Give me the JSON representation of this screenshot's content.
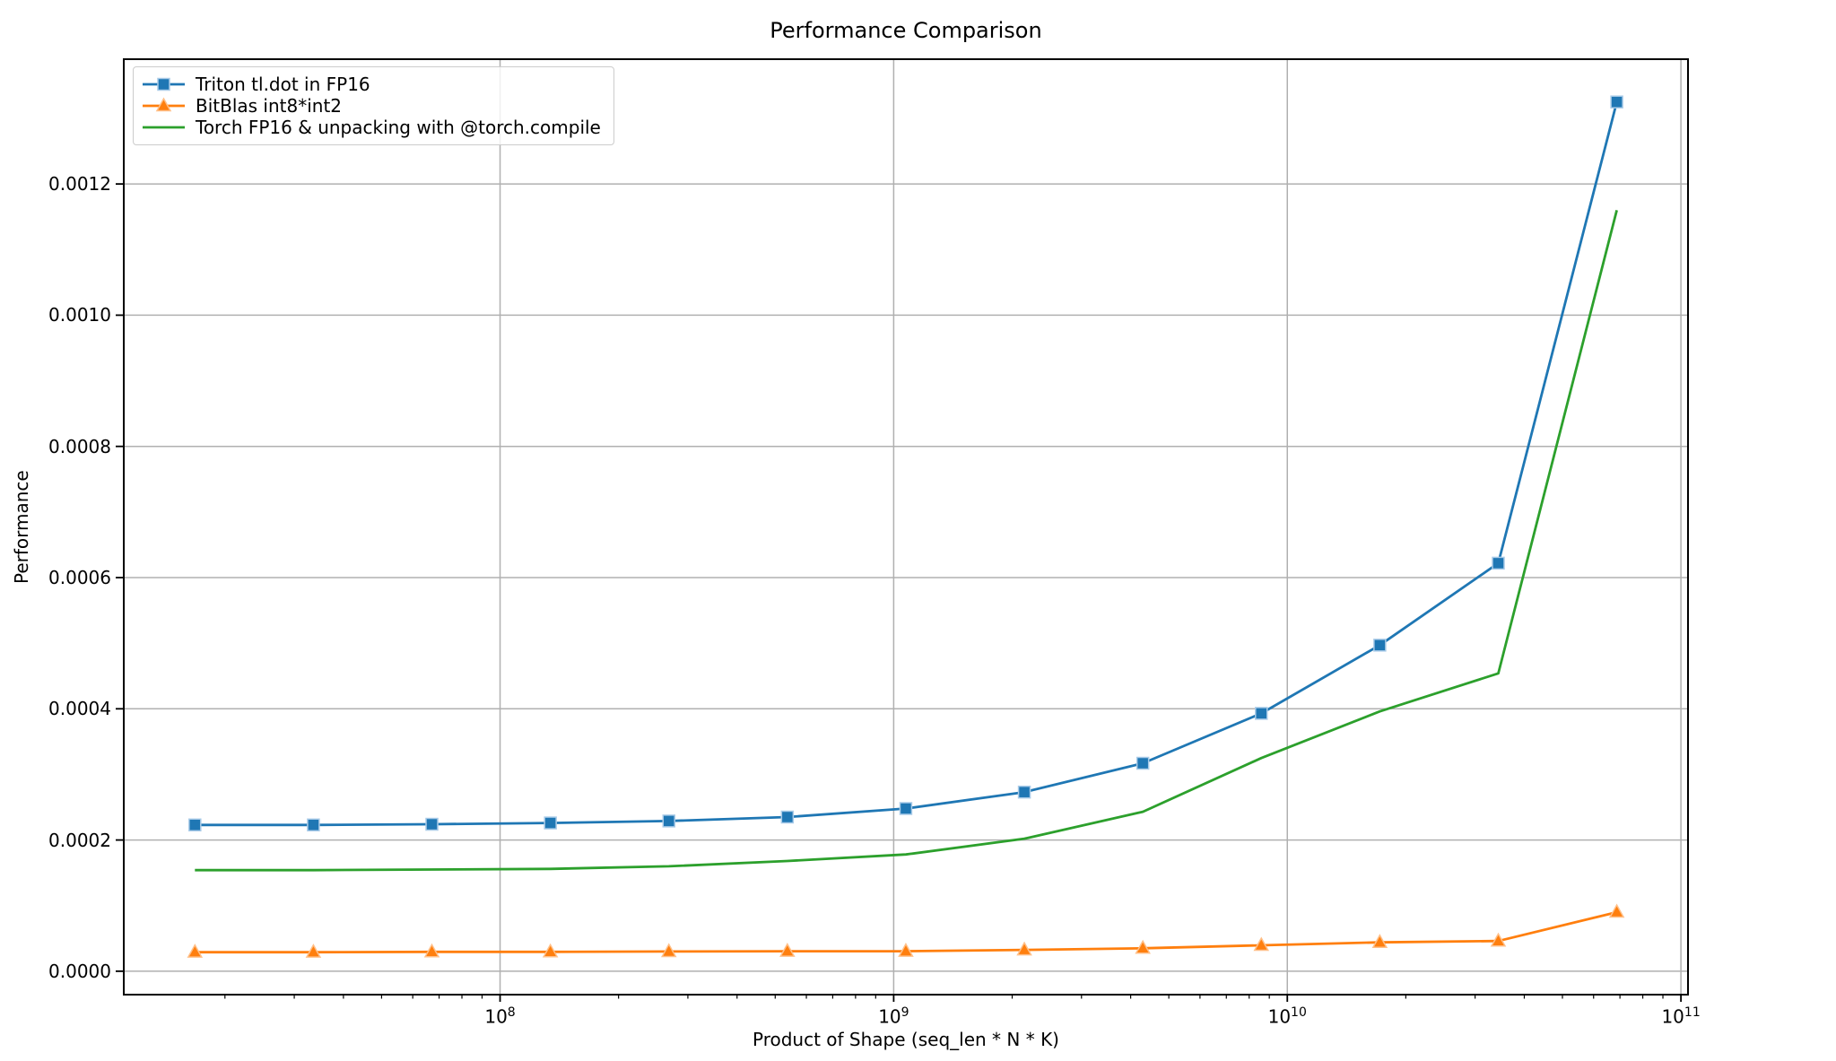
{
  "figure": {
    "background": "#ffffff"
  },
  "chart_data": {
    "type": "line",
    "title": "Performance Comparison",
    "xlabel": "Product of Shape (seq_len * N * K)",
    "ylabel": "Performance",
    "x_scale": "log",
    "grid": true,
    "grid_color": "#b0b0b0",
    "spine_color": "#000000",
    "legend_position": "upper left",
    "x_range_log10": [
      7.044,
      11.018
    ],
    "y_range": [
      -3.57e-05,
      0.0013902
    ],
    "x": [
      16777216,
      33554432,
      67108864,
      134217728,
      268435456,
      536870912,
      1073741824,
      2147483648,
      4294967296,
      8589934592,
      17179869184,
      34359738368,
      68719476736
    ],
    "series": [
      {
        "name": "Triton tl.dot in FP16",
        "color": "#1f77b4",
        "marker": "square",
        "marker_halo": "#a9cbe8",
        "values": [
          0.000223,
          0.000223,
          0.000224,
          0.000226,
          0.000229,
          0.000235,
          0.000248,
          0.000273,
          0.000317,
          0.000393,
          0.000497,
          0.000622,
          0.001325
        ]
      },
      {
        "name": "BitBlas int8*int2",
        "color": "#ff7f0e",
        "marker": "triangle",
        "marker_halo": "#ffc089",
        "values": [
          2.9e-05,
          2.9e-05,
          2.95e-05,
          2.95e-05,
          3e-05,
          3.05e-05,
          3.05e-05,
          3.25e-05,
          3.5e-05,
          3.95e-05,
          4.4e-05,
          4.6e-05,
          9e-05
        ]
      },
      {
        "name": "Torch FP16 & unpacking with @torch.compile",
        "color": "#2ca02c",
        "marker": "none",
        "marker_halo": "#9fd49f",
        "values": [
          0.000154,
          0.000154,
          0.000155,
          0.000156,
          0.00016,
          0.000168,
          0.000178,
          0.000202,
          0.000243,
          0.000325,
          0.000396,
          0.000454,
          0.00116
        ]
      }
    ],
    "x_ticks": [
      {
        "value": 100000000,
        "base": "10",
        "exp": "8"
      },
      {
        "value": 1000000000,
        "base": "10",
        "exp": "9"
      },
      {
        "value": 10000000000,
        "base": "10",
        "exp": "10"
      },
      {
        "value": 100000000000,
        "base": "10",
        "exp": "11"
      }
    ],
    "y_ticks": [
      {
        "value": 0.0,
        "label": "0.0000"
      },
      {
        "value": 0.0002,
        "label": "0.0002"
      },
      {
        "value": 0.0004,
        "label": "0.0004"
      },
      {
        "value": 0.0006,
        "label": "0.0006"
      },
      {
        "value": 0.0008,
        "label": "0.0008"
      },
      {
        "value": 0.001,
        "label": "0.0010"
      },
      {
        "value": 0.0012,
        "label": "0.0012"
      }
    ]
  }
}
